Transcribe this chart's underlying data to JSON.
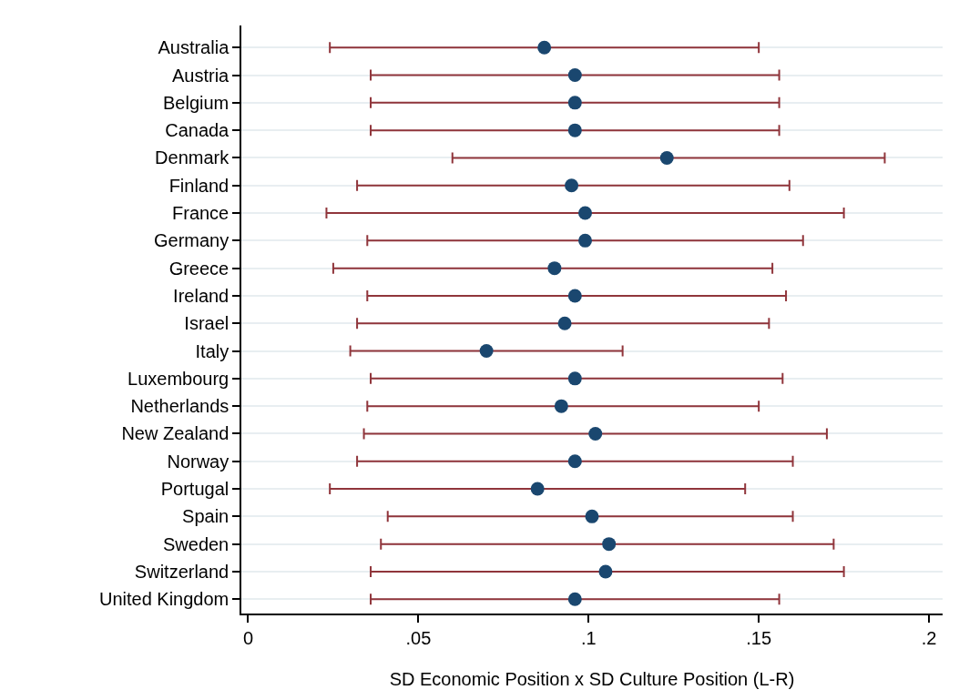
{
  "chart_data": {
    "type": "scatter",
    "orientation": "horizontal",
    "xlabel": "SD Economic Position x SD Culture Position (L-R)",
    "categories": [
      "Australia",
      "Austria",
      "Belgium",
      "Canada",
      "Denmark",
      "Finland",
      "France",
      "Germany",
      "Greece",
      "Ireland",
      "Israel",
      "Italy",
      "Luxembourg",
      "Netherlands",
      "New Zealand",
      "Norway",
      "Portugal",
      "Spain",
      "Sweden",
      "Switzerland",
      "United Kingdom"
    ],
    "series": [
      {
        "color": "#1a476f",
        "values": [
          0.087,
          0.096,
          0.096,
          0.096,
          0.123,
          0.095,
          0.099,
          0.099,
          0.09,
          0.096,
          0.093,
          0.07,
          0.096,
          0.092,
          0.102,
          0.096,
          0.085,
          0.101,
          0.106,
          0.105,
          0.096
        ],
        "errors": [
          [
            0.024,
            0.15
          ],
          [
            0.036,
            0.156
          ],
          [
            0.036,
            0.156
          ],
          [
            0.036,
            0.156
          ],
          [
            0.06,
            0.187
          ],
          [
            0.032,
            0.159
          ],
          [
            0.023,
            0.175
          ],
          [
            0.035,
            0.163
          ],
          [
            0.025,
            0.154
          ],
          [
            0.035,
            0.158
          ],
          [
            0.032,
            0.153
          ],
          [
            0.03,
            0.11
          ],
          [
            0.036,
            0.157
          ],
          [
            0.035,
            0.15
          ],
          [
            0.034,
            0.17
          ],
          [
            0.032,
            0.16
          ],
          [
            0.024,
            0.146
          ],
          [
            0.041,
            0.16
          ],
          [
            0.039,
            0.172
          ],
          [
            0.036,
            0.175
          ],
          [
            0.036,
            0.156
          ]
        ]
      }
    ],
    "xlim": [
      -0.002,
      0.204
    ],
    "xticks": [
      0,
      {
        "value": 0.05,
        "label": ".05"
      },
      {
        "value": 0.1,
        "label": ".1"
      },
      {
        "value": 0.15,
        "label": ".15"
      },
      {
        "value": 0.2,
        "label": ".2"
      }
    ],
    "grid": "y",
    "marker": "circle"
  }
}
